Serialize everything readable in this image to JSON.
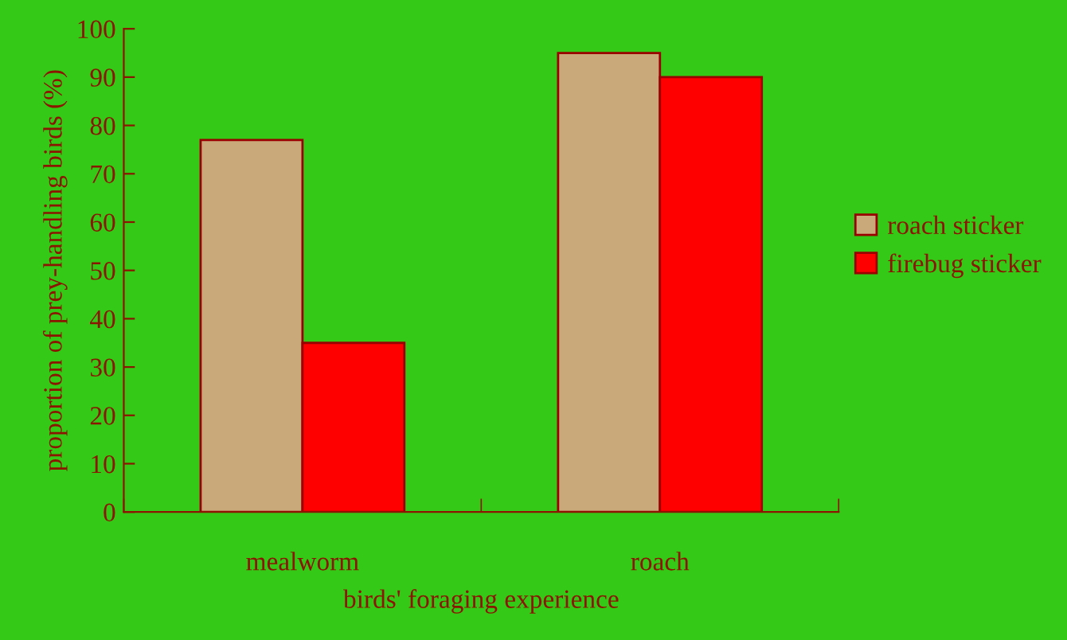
{
  "chart_data": {
    "type": "bar",
    "xlabel": "birds' foraging experience",
    "ylabel": "proportion of prey-handling birds (%)",
    "categories": [
      "mealworm",
      "roach"
    ],
    "series": [
      {
        "name": "roach sticker",
        "color": "#c9a97a",
        "values": [
          77,
          95
        ]
      },
      {
        "name": "firebug sticker",
        "color": "#ff0000",
        "values": [
          35,
          90
        ]
      }
    ],
    "ylim": [
      0,
      100
    ],
    "yticks": [
      0,
      10,
      20,
      30,
      40,
      50,
      60,
      70,
      80,
      90,
      100
    ],
    "grid": false,
    "legend": "right"
  }
}
